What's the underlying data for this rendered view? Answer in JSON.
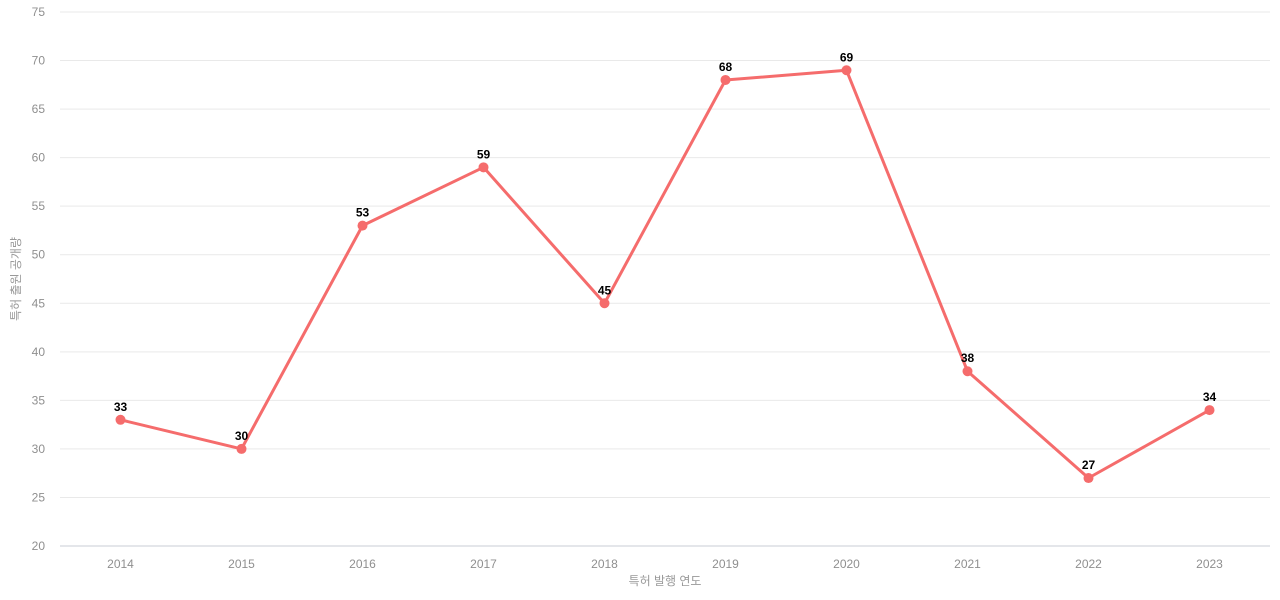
{
  "chart_data": {
    "type": "line",
    "title": "",
    "categories": [
      "2014",
      "2015",
      "2016",
      "2017",
      "2018",
      "2019",
      "2020",
      "2021",
      "2022",
      "2023"
    ],
    "series": [
      {
        "name": "특허 출원 공개량",
        "values": [
          33,
          30,
          53,
          59,
          45,
          68,
          69,
          38,
          27,
          34
        ]
      }
    ],
    "xlabel": "특허 발행 연도",
    "ylabel": "특허 출원 공개량",
    "ylim": [
      20,
      75
    ],
    "ytick_step": 5,
    "yticks": [
      20,
      25,
      30,
      35,
      40,
      45,
      50,
      55,
      60,
      65,
      70,
      75
    ],
    "grid": true,
    "legend_position": "none",
    "point_labels_visible": true,
    "colors": {
      "line": "#f56c6c",
      "marker": "#f56c6c",
      "gridline": "#e9e9e9",
      "axis_line": "#c9cdd6",
      "tick_label": "#8f8f8f",
      "axis_title": "#999999",
      "value_label": "#000000",
      "background": "#ffffff"
    }
  }
}
